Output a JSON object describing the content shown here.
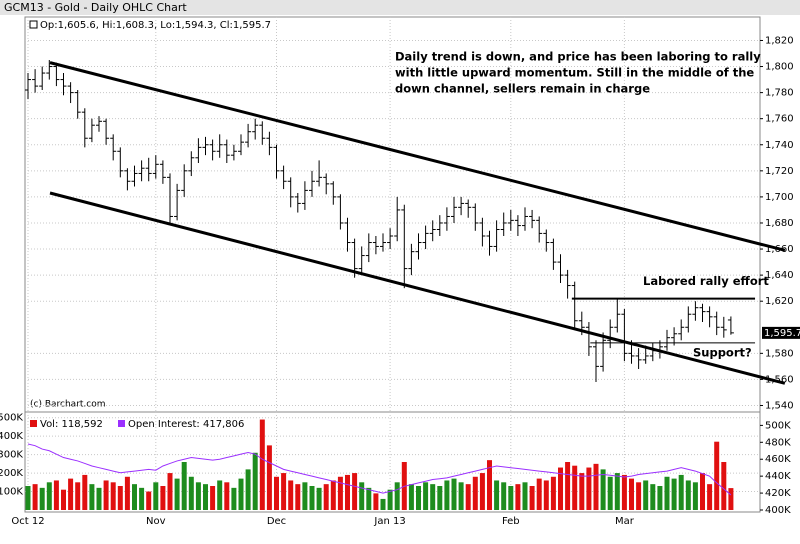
{
  "chart_data": {
    "type": "ohlc",
    "title": "GCM13 - Gold - Daily OHLC Chart",
    "legend_text": "Op:1,605.6, Hi:1,608.3, Lo:1,594.3, Cl:1,595.7",
    "source": "(c) Barchart.com",
    "annotation_lines": [
      "Daily trend is down, and price has been laboring to rally",
      "with little upward momentum.  Still in the middle of the",
      "down channel, sellers remain in charge"
    ],
    "bar_color": "#000000",
    "categories": [
      "Oct 12",
      null,
      null,
      null,
      null,
      null,
      null,
      null,
      null,
      null,
      null,
      null,
      null,
      null,
      null,
      null,
      null,
      null,
      "Nov",
      null,
      null,
      null,
      null,
      null,
      null,
      null,
      null,
      null,
      null,
      null,
      null,
      null,
      null,
      null,
      null,
      "Dec",
      null,
      null,
      null,
      null,
      null,
      null,
      null,
      null,
      null,
      null,
      null,
      null,
      null,
      null,
      null,
      "Jan 13",
      null,
      null,
      null,
      null,
      null,
      null,
      null,
      null,
      null,
      null,
      null,
      null,
      null,
      null,
      null,
      null,
      "Feb",
      null,
      null,
      null,
      null,
      null,
      null,
      null,
      null,
      null,
      null,
      null,
      null,
      null,
      null,
      null,
      "Mar",
      null,
      null,
      null,
      null,
      null,
      null,
      null,
      null,
      null,
      null,
      null,
      null,
      null,
      null,
      null
    ],
    "ohlc": [
      [
        1782,
        1795,
        1775,
        1790
      ],
      [
        1790,
        1798,
        1780,
        1785
      ],
      [
        1785,
        1800,
        1782,
        1795
      ],
      [
        1795,
        1805,
        1790,
        1800
      ],
      [
        1800,
        1803,
        1785,
        1790
      ],
      [
        1790,
        1795,
        1778,
        1785
      ],
      [
        1785,
        1788,
        1772,
        1780
      ],
      [
        1780,
        1782,
        1760,
        1765
      ],
      [
        1765,
        1768,
        1738,
        1745
      ],
      [
        1745,
        1760,
        1742,
        1755
      ],
      [
        1755,
        1762,
        1750,
        1758
      ],
      [
        1758,
        1760,
        1740,
        1745
      ],
      [
        1745,
        1748,
        1728,
        1735
      ],
      [
        1735,
        1738,
        1715,
        1720
      ],
      [
        1720,
        1722,
        1705,
        1712
      ],
      [
        1712,
        1724,
        1708,
        1718
      ],
      [
        1718,
        1728,
        1712,
        1722
      ],
      [
        1722,
        1730,
        1712,
        1718
      ],
      [
        1718,
        1732,
        1714,
        1725
      ],
      [
        1725,
        1728,
        1710,
        1715
      ],
      [
        1715,
        1718,
        1680,
        1685
      ],
      [
        1685,
        1710,
        1682,
        1705
      ],
      [
        1705,
        1725,
        1700,
        1720
      ],
      [
        1720,
        1735,
        1716,
        1730
      ],
      [
        1730,
        1745,
        1726,
        1738
      ],
      [
        1738,
        1746,
        1732,
        1740
      ],
      [
        1740,
        1744,
        1728,
        1735
      ],
      [
        1735,
        1748,
        1730,
        1740
      ],
      [
        1740,
        1744,
        1726,
        1732
      ],
      [
        1732,
        1740,
        1728,
        1735
      ],
      [
        1735,
        1748,
        1732,
        1742
      ],
      [
        1742,
        1756,
        1738,
        1750
      ],
      [
        1750,
        1760,
        1744,
        1755
      ],
      [
        1755,
        1758,
        1740,
        1745
      ],
      [
        1745,
        1750,
        1732,
        1738
      ],
      [
        1738,
        1740,
        1714,
        1720
      ],
      [
        1720,
        1724,
        1706,
        1712
      ],
      [
        1712,
        1715,
        1692,
        1700
      ],
      [
        1700,
        1703,
        1688,
        1695
      ],
      [
        1695,
        1712,
        1690,
        1705
      ],
      [
        1705,
        1720,
        1700,
        1712
      ],
      [
        1712,
        1728,
        1708,
        1715
      ],
      [
        1715,
        1718,
        1702,
        1710
      ],
      [
        1710,
        1712,
        1694,
        1700
      ],
      [
        1700,
        1702,
        1675,
        1680
      ],
      [
        1680,
        1684,
        1658,
        1665
      ],
      [
        1665,
        1668,
        1638,
        1645
      ],
      [
        1645,
        1662,
        1640,
        1655
      ],
      [
        1655,
        1672,
        1650,
        1665
      ],
      [
        1665,
        1670,
        1656,
        1662
      ],
      [
        1662,
        1672,
        1658,
        1665
      ],
      [
        1665,
        1676,
        1660,
        1670
      ],
      [
        1670,
        1700,
        1666,
        1690
      ],
      [
        1690,
        1694,
        1630,
        1645
      ],
      [
        1645,
        1664,
        1640,
        1658
      ],
      [
        1658,
        1672,
        1652,
        1665
      ],
      [
        1665,
        1678,
        1660,
        1672
      ],
      [
        1672,
        1682,
        1666,
        1675
      ],
      [
        1675,
        1686,
        1670,
        1680
      ],
      [
        1680,
        1692,
        1674,
        1685
      ],
      [
        1685,
        1700,
        1680,
        1692
      ],
      [
        1692,
        1700,
        1686,
        1695
      ],
      [
        1695,
        1698,
        1684,
        1692
      ],
      [
        1692,
        1695,
        1674,
        1680
      ],
      [
        1680,
        1684,
        1662,
        1670
      ],
      [
        1670,
        1674,
        1655,
        1662
      ],
      [
        1662,
        1682,
        1658,
        1675
      ],
      [
        1675,
        1688,
        1670,
        1680
      ],
      [
        1680,
        1690,
        1674,
        1682
      ],
      [
        1682,
        1686,
        1670,
        1678
      ],
      [
        1678,
        1692,
        1674,
        1685
      ],
      [
        1685,
        1690,
        1676,
        1682
      ],
      [
        1682,
        1685,
        1665,
        1672
      ],
      [
        1672,
        1675,
        1658,
        1665
      ],
      [
        1665,
        1668,
        1644,
        1650
      ],
      [
        1650,
        1656,
        1634,
        1640
      ],
      [
        1640,
        1644,
        1622,
        1632
      ],
      [
        1632,
        1635,
        1598,
        1605
      ],
      [
        1605,
        1612,
        1594,
        1600
      ],
      [
        1600,
        1604,
        1578,
        1585
      ],
      [
        1585,
        1590,
        1558,
        1570
      ],
      [
        1570,
        1596,
        1566,
        1590
      ],
      [
        1590,
        1606,
        1584,
        1600
      ],
      [
        1600,
        1622,
        1596,
        1610
      ],
      [
        1610,
        1614,
        1574,
        1580
      ],
      [
        1580,
        1590,
        1572,
        1578
      ],
      [
        1578,
        1584,
        1568,
        1575
      ],
      [
        1575,
        1586,
        1572,
        1578
      ],
      [
        1578,
        1588,
        1574,
        1582
      ],
      [
        1582,
        1590,
        1576,
        1585
      ],
      [
        1585,
        1598,
        1582,
        1592
      ],
      [
        1592,
        1600,
        1586,
        1595
      ],
      [
        1595,
        1606,
        1590,
        1600
      ],
      [
        1600,
        1616,
        1596,
        1610
      ],
      [
        1610,
        1620,
        1605,
        1615
      ],
      [
        1615,
        1618,
        1604,
        1612
      ],
      [
        1612,
        1616,
        1600,
        1608
      ],
      [
        1608,
        1612,
        1594,
        1600
      ],
      [
        1600,
        1608,
        1592,
        1598
      ],
      [
        1605.6,
        1608.3,
        1594.3,
        1595.7
      ]
    ],
    "ylim": [
      1535,
      1838
    ],
    "yticks": [
      {
        "value": 1540,
        "label": "1,540"
      },
      {
        "value": 1560,
        "label": "1,560"
      },
      {
        "value": 1580,
        "label": "1,580"
      },
      {
        "value": 1620,
        "label": "1,620"
      },
      {
        "value": 1640,
        "label": "1,640"
      },
      {
        "value": 1660,
        "label": "1,660"
      },
      {
        "value": 1680,
        "label": "1,680"
      },
      {
        "value": 1700,
        "label": "1,700"
      },
      {
        "value": 1720,
        "label": "1,720"
      },
      {
        "value": 1740,
        "label": "1,740"
      },
      {
        "value": 1760,
        "label": "1,760"
      },
      {
        "value": 1780,
        "label": "1,780"
      },
      {
        "value": 1800,
        "label": "1,800"
      },
      {
        "value": 1820,
        "label": "1,820"
      }
    ],
    "last_price": {
      "value": 1595.7,
      "label": "1,595.7"
    },
    "trendlines": [
      {
        "x": [
          3.1,
          106.6
        ],
        "y": [
          1803,
          1659
        ]
      },
      {
        "x": [
          3.1,
          106.6
        ],
        "y": [
          1703,
          1557
        ]
      }
    ],
    "levels": [
      {
        "label": "Labored rally effort",
        "value": 1622,
        "x": [
          76.6,
          102.4
        ]
      },
      {
        "label": "Support?",
        "value": 1588,
        "x": [
          79.2,
          102.4
        ]
      }
    ],
    "grid": true,
    "volume": {
      "name": "Vol: 118,592",
      "up_color": "#1e8c1e",
      "down_color": "#e01010",
      "values": [
        130000,
        140000,
        120000,
        150000,
        160000,
        110000,
        170000,
        150000,
        190000,
        140000,
        120000,
        160000,
        150000,
        130000,
        180000,
        140000,
        120000,
        100000,
        150000,
        130000,
        200000,
        170000,
        260000,
        180000,
        150000,
        140000,
        130000,
        160000,
        150000,
        120000,
        170000,
        220000,
        310000,
        490000,
        350000,
        180000,
        200000,
        160000,
        140000,
        150000,
        130000,
        120000,
        140000,
        160000,
        180000,
        190000,
        200000,
        150000,
        120000,
        90000,
        60000,
        110000,
        150000,
        260000,
        140000,
        130000,
        150000,
        140000,
        130000,
        160000,
        170000,
        150000,
        140000,
        180000,
        200000,
        270000,
        160000,
        150000,
        130000,
        140000,
        150000,
        130000,
        170000,
        160000,
        180000,
        230000,
        260000,
        240000,
        200000,
        230000,
        250000,
        220000,
        180000,
        200000,
        190000,
        170000,
        150000,
        160000,
        140000,
        130000,
        180000,
        170000,
        190000,
        160000,
        150000,
        200000,
        140000,
        370000,
        260000,
        118592
      ],
      "ylim": [
        0,
        520000
      ],
      "yticks": [
        {
          "value": 100000,
          "label": "100K"
        },
        {
          "value": 200000,
          "label": "200K"
        },
        {
          "value": 300000,
          "label": "300K"
        },
        {
          "value": 400000,
          "label": "400K"
        },
        {
          "value": 500000,
          "label": "500K"
        }
      ]
    },
    "open_interest": {
      "name": "Open Interest: 417,806",
      "color": "#9b30ff",
      "axis": "y2",
      "values": [
        478000,
        476000,
        472000,
        470000,
        466000,
        462000,
        460000,
        458000,
        455000,
        452000,
        450000,
        448000,
        446000,
        444000,
        445000,
        446000,
        447000,
        448000,
        447000,
        452000,
        455000,
        458000,
        460000,
        462000,
        461000,
        460000,
        459000,
        460000,
        462000,
        464000,
        466000,
        468000,
        466000,
        460000,
        456000,
        452000,
        448000,
        446000,
        444000,
        442000,
        440000,
        438000,
        436000,
        434000,
        432000,
        430000,
        428000,
        426000,
        424000,
        422000,
        420000,
        422000,
        424000,
        428000,
        430000,
        432000,
        434000,
        436000,
        437000,
        438000,
        440000,
        442000,
        444000,
        446000,
        448000,
        450000,
        452000,
        451000,
        450000,
        449000,
        448000,
        447000,
        446000,
        445000,
        444000,
        443000,
        442000,
        441000,
        440000,
        440000,
        441000,
        442000,
        441000,
        440000,
        439000,
        440000,
        442000,
        443000,
        444000,
        445000,
        446000,
        448000,
        450000,
        448000,
        446000,
        443000,
        440000,
        432000,
        425000,
        417806
      ]
    },
    "y2lim": [
      400000,
      504000
    ],
    "y2ticks": [
      {
        "value": 400000,
        "label": "400K"
      },
      {
        "value": 420000,
        "label": "420K"
      },
      {
        "value": 440000,
        "label": "440K"
      },
      {
        "value": 460000,
        "label": "460K"
      },
      {
        "value": 480000,
        "label": "480K"
      },
      {
        "value": 500000,
        "label": "500K"
      }
    ]
  }
}
